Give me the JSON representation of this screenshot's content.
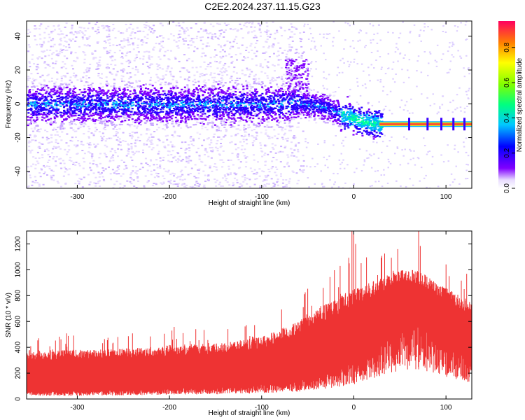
{
  "title": "C2E2.2024.237.11.15.G23",
  "chart_data": [
    {
      "type": "heatmap",
      "xlabel": "Height of straight line (km)",
      "ylabel": "Frequency (Hz)",
      "xlim": [
        -355,
        128
      ],
      "ylim": [
        -50,
        49
      ],
      "xticks": [
        -300,
        -200,
        -100,
        0,
        100
      ],
      "yticks": [
        -40,
        -20,
        0,
        20,
        40
      ],
      "colorbar": {
        "label": "Normalized spectral amplitude",
        "range": [
          0,
          0.95
        ],
        "ticks": [
          0.0,
          0.2,
          0.4,
          0.6,
          0.8
        ]
      },
      "ridge": {
        "x": [
          -355,
          -300,
          -200,
          -100,
          -60,
          -30,
          -10,
          10,
          30,
          128
        ],
        "y": [
          0,
          0,
          0,
          0,
          1,
          -2,
          -7,
          -10,
          -12,
          -12
        ]
      },
      "grid": false
    },
    {
      "type": "line",
      "xlabel": "Height of straight line (km)",
      "ylabel": "SNR (10 * v/v)",
      "xlim": [
        -355,
        128
      ],
      "ylim": [
        0,
        1300
      ],
      "xticks": [
        -300,
        -200,
        -100,
        0,
        100
      ],
      "yticks": [
        0,
        200,
        400,
        600,
        800,
        1000,
        1200
      ],
      "series": [
        {
          "color": "#ee3333",
          "envelope_x": [
            -355,
            -300,
            -250,
            -200,
            -150,
            -100,
            -60,
            -30,
            0,
            30,
            50,
            70,
            90,
            110,
            128
          ],
          "upper": [
            380,
            380,
            390,
            420,
            430,
            480,
            600,
            750,
            850,
            950,
            1000,
            1000,
            900,
            820,
            750
          ],
          "lower": [
            60,
            60,
            70,
            80,
            90,
            110,
            140,
            200,
            280,
            450,
            550,
            570,
            500,
            370,
            300
          ]
        }
      ],
      "grid": false
    }
  ]
}
